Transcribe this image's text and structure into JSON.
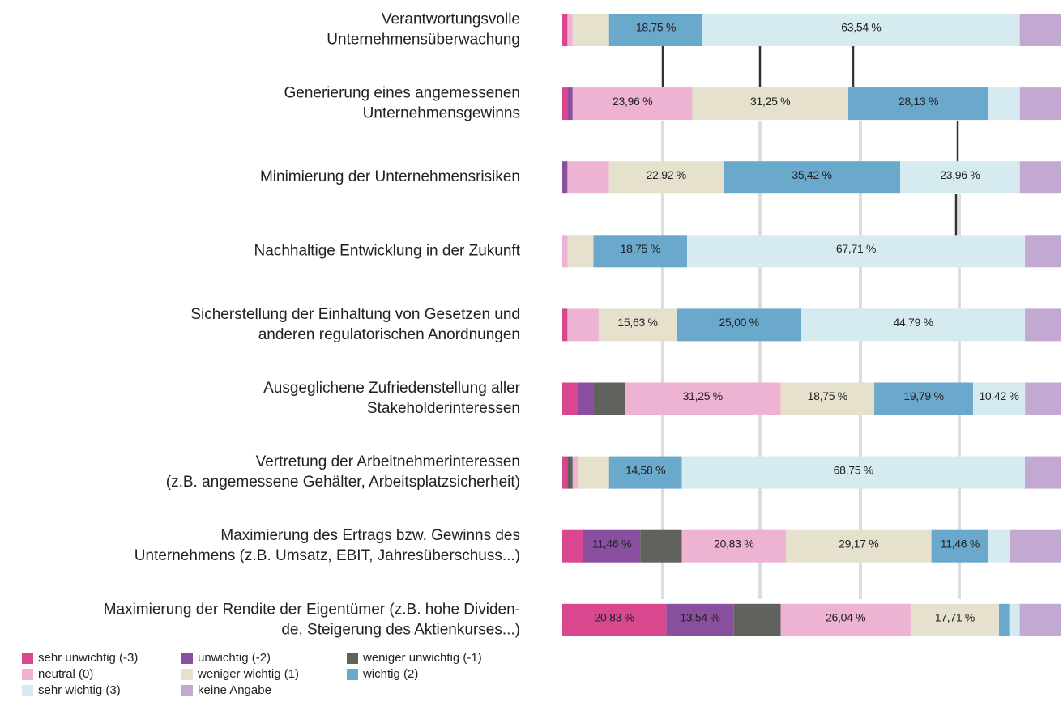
{
  "chart_data": {
    "type": "stacked-bar-horizontal",
    "categories": [
      [
        "Verantwortungsvolle",
        "Unternehmensüberwachung"
      ],
      [
        "Generierung eines angemessenen",
        "Unternehmensgewinns"
      ],
      [
        "Minimierung der Unternehmensrisiken"
      ],
      [
        "Nachhaltige Entwicklung in der Zukunft"
      ],
      [
        "Sicherstellung der Einhaltung von Gesetzen und",
        "anderen regulatorischen Anordnungen"
      ],
      [
        "Ausgeglichene Zufriedenstellung aller",
        "Stakeholderinteressen"
      ],
      [
        "Vertretung der Arbeitnehmerinteressen",
        "(z.B. angemessene Gehälter, Arbeitsplatzsicherheit)"
      ],
      [
        "Maximierung des Ertrags bzw. Gewinns des",
        "Unternehmens (z.B. Umsatz, EBIT, Jahresüberschuss...)"
      ],
      [
        "Maximierung der Rendite der Eigentümer (z.B. hohe Dividen-",
        "de, Steigerung des Aktienkurses...)"
      ]
    ],
    "xlim": [
      0,
      100
    ],
    "series": [
      {
        "name": "sehr unwichtig (-3)",
        "color": "#d9488f",
        "values": [
          1.04,
          1.04,
          0,
          0,
          1.04,
          3.13,
          1.04,
          4.17,
          20.83
        ],
        "value_labels": [
          null,
          null,
          null,
          null,
          null,
          null,
          null,
          null,
          "20,83 %"
        ]
      },
      {
        "name": "unwichtig (-2)",
        "color": "#8a4f9e",
        "values": [
          0,
          1.04,
          1.04,
          0,
          0,
          3.13,
          0,
          11.46,
          13.54
        ],
        "value_labels": [
          null,
          null,
          null,
          null,
          null,
          null,
          null,
          "11,46 %",
          "13,54 %"
        ]
      },
      {
        "name": "weniger unwichtig (-1)",
        "color": "#5f625d",
        "values": [
          0,
          0,
          0,
          0,
          0,
          6.25,
          1.04,
          8.33,
          9.38
        ],
        "value_labels": [
          null,
          null,
          null,
          null,
          null,
          null,
          null,
          null,
          null
        ]
      },
      {
        "name": "neutral (0)",
        "color": "#eeb3d2",
        "values": [
          1.04,
          23.96,
          8.33,
          1.04,
          6.25,
          31.25,
          1.04,
          20.83,
          26.04
        ],
        "value_labels": [
          null,
          "23,96 %",
          null,
          null,
          null,
          "31,25 %",
          null,
          "20,83 %",
          "26,04 %"
        ]
      },
      {
        "name": "weniger wichtig (1)",
        "color": "#e6e1cd",
        "values": [
          7.29,
          31.25,
          22.92,
          5.21,
          15.63,
          18.75,
          6.25,
          29.17,
          17.71
        ],
        "value_labels": [
          null,
          "31,25 %",
          "22,92 %",
          null,
          "15,63 %",
          "18,75 %",
          null,
          "29,17 %",
          "17,71 %"
        ]
      },
      {
        "name": "wichtig (2)",
        "color": "#6aa8cc",
        "values": [
          18.75,
          28.13,
          35.42,
          18.75,
          25.0,
          19.79,
          14.58,
          11.46,
          2.08
        ],
        "value_labels": [
          "18,75 %",
          "28,13 %",
          "35,42 %",
          "18,75 %",
          "25,00 %",
          "19,79 %",
          "14,58 %",
          "11,46 %",
          null
        ]
      },
      {
        "name": "sehr wichtig (3)",
        "color": "#d6ebef",
        "values": [
          63.54,
          6.25,
          23.96,
          67.71,
          44.79,
          10.42,
          68.75,
          4.17,
          2.08
        ],
        "value_labels": [
          "63,54 %",
          null,
          "23,96 %",
          "67,71 %",
          "44,79 %",
          "10,42 %",
          "68,75 %",
          null,
          null
        ]
      },
      {
        "name": "keine Angabe",
        "color": "#c3a9d2",
        "values": [
          8.33,
          8.33,
          8.33,
          7.29,
          7.29,
          7.29,
          7.29,
          10.41,
          8.34
        ],
        "value_labels": [
          null,
          null,
          null,
          null,
          null,
          null,
          null,
          null,
          null
        ]
      }
    ]
  }
}
